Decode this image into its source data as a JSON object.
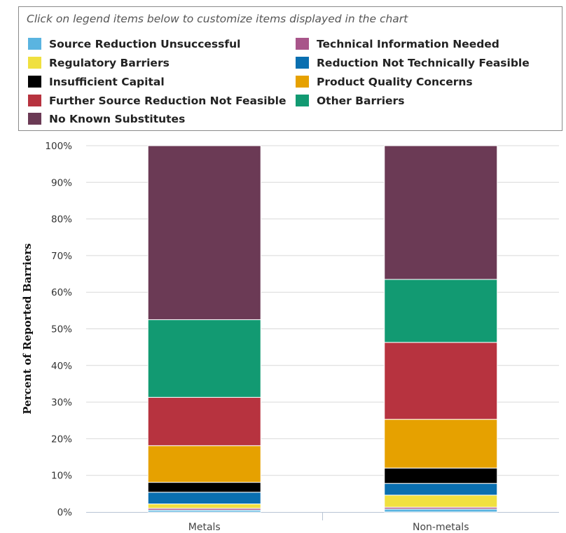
{
  "legend": {
    "hint": "Click on legend items below to customize items displayed in the chart"
  },
  "chart_data": {
    "type": "bar",
    "stacked": true,
    "percent": true,
    "categories": [
      "Metals",
      "Non-metals"
    ],
    "ylabel": "Percent of Reported Barriers",
    "xlabel": "",
    "ylim": [
      0,
      100
    ],
    "yticks": [
      "0%",
      "10%",
      "20%",
      "30%",
      "40%",
      "50%",
      "60%",
      "70%",
      "80%",
      "90%",
      "100%"
    ],
    "grid": true,
    "legend_position": "top",
    "series": [
      {
        "name": "Source Reduction Unsuccessful",
        "color": "#5ab4e0",
        "values": [
          0.5,
          0.8
        ]
      },
      {
        "name": "Technical Information Needed",
        "color": "#a8558a",
        "values": [
          0.5,
          0.5
        ]
      },
      {
        "name": "Regulatory Barriers",
        "color": "#f0e040",
        "values": [
          1.2,
          3.3
        ]
      },
      {
        "name": "Reduction Not Technically Feasible",
        "color": "#0a6fb0",
        "values": [
          3.2,
          3.2
        ]
      },
      {
        "name": "Insufficient Capital",
        "color": "#000000",
        "values": [
          2.7,
          4.2
        ]
      },
      {
        "name": "Product Quality Concerns",
        "color": "#e6a100",
        "values": [
          10.0,
          13.3
        ]
      },
      {
        "name": "Further Source Reduction Not Feasible",
        "color": "#b7333f",
        "values": [
          13.2,
          21.0
        ]
      },
      {
        "name": "Other Barriers",
        "color": "#129a72",
        "values": [
          21.2,
          17.2
        ]
      },
      {
        "name": "No Known Substitutes",
        "color": "#6b3a55",
        "values": [
          47.5,
          36.5
        ]
      }
    ]
  }
}
